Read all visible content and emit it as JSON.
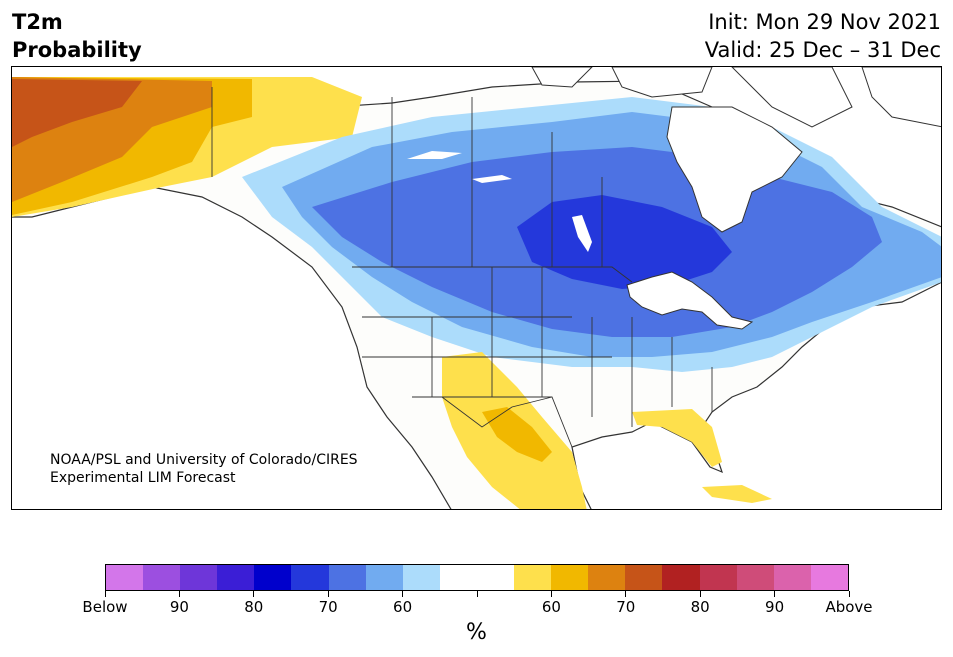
{
  "title": {
    "line1": "T2m",
    "line2": "Probability"
  },
  "init": "Init: Mon 29 Nov 2021",
  "valid": "Valid: 25 Dec – 31 Dec",
  "credit": {
    "line1": "NOAA/PSL and University of Colorado/CIRES",
    "line2": "Experimental LIM Forecast"
  },
  "colorbar": {
    "colors": [
      "#d376ea",
      "#9c4fe0",
      "#6e36d9",
      "#3b1ed6",
      "#0000cc",
      "#2438db",
      "#4d72e3",
      "#71abf0",
      "#acdcfb",
      "#ffffff",
      "#ffffff",
      "#fee04c",
      "#f1b800",
      "#dd8210",
      "#c65418",
      "#b12121",
      "#c13550",
      "#cf4c79",
      "#db62ac",
      "#e779df"
    ],
    "labels": [
      "Below",
      "90",
      "80",
      "70",
      "60",
      "60",
      "70",
      "80",
      "90",
      "Above"
    ],
    "unit": "%"
  },
  "map": {
    "region": "North America",
    "colors": {
      "land": "#fdfdfb",
      "ocean": "#ffffff",
      "border": "#333333",
      "cold_60": "#acdcfb",
      "cold_70": "#71abf0",
      "cold_80": "#4d72e3",
      "cold_90": "#2438db",
      "warm_60": "#fee04c",
      "warm_70": "#f1b800",
      "warm_80": "#dd8210",
      "warm_90": "#c65418"
    }
  }
}
